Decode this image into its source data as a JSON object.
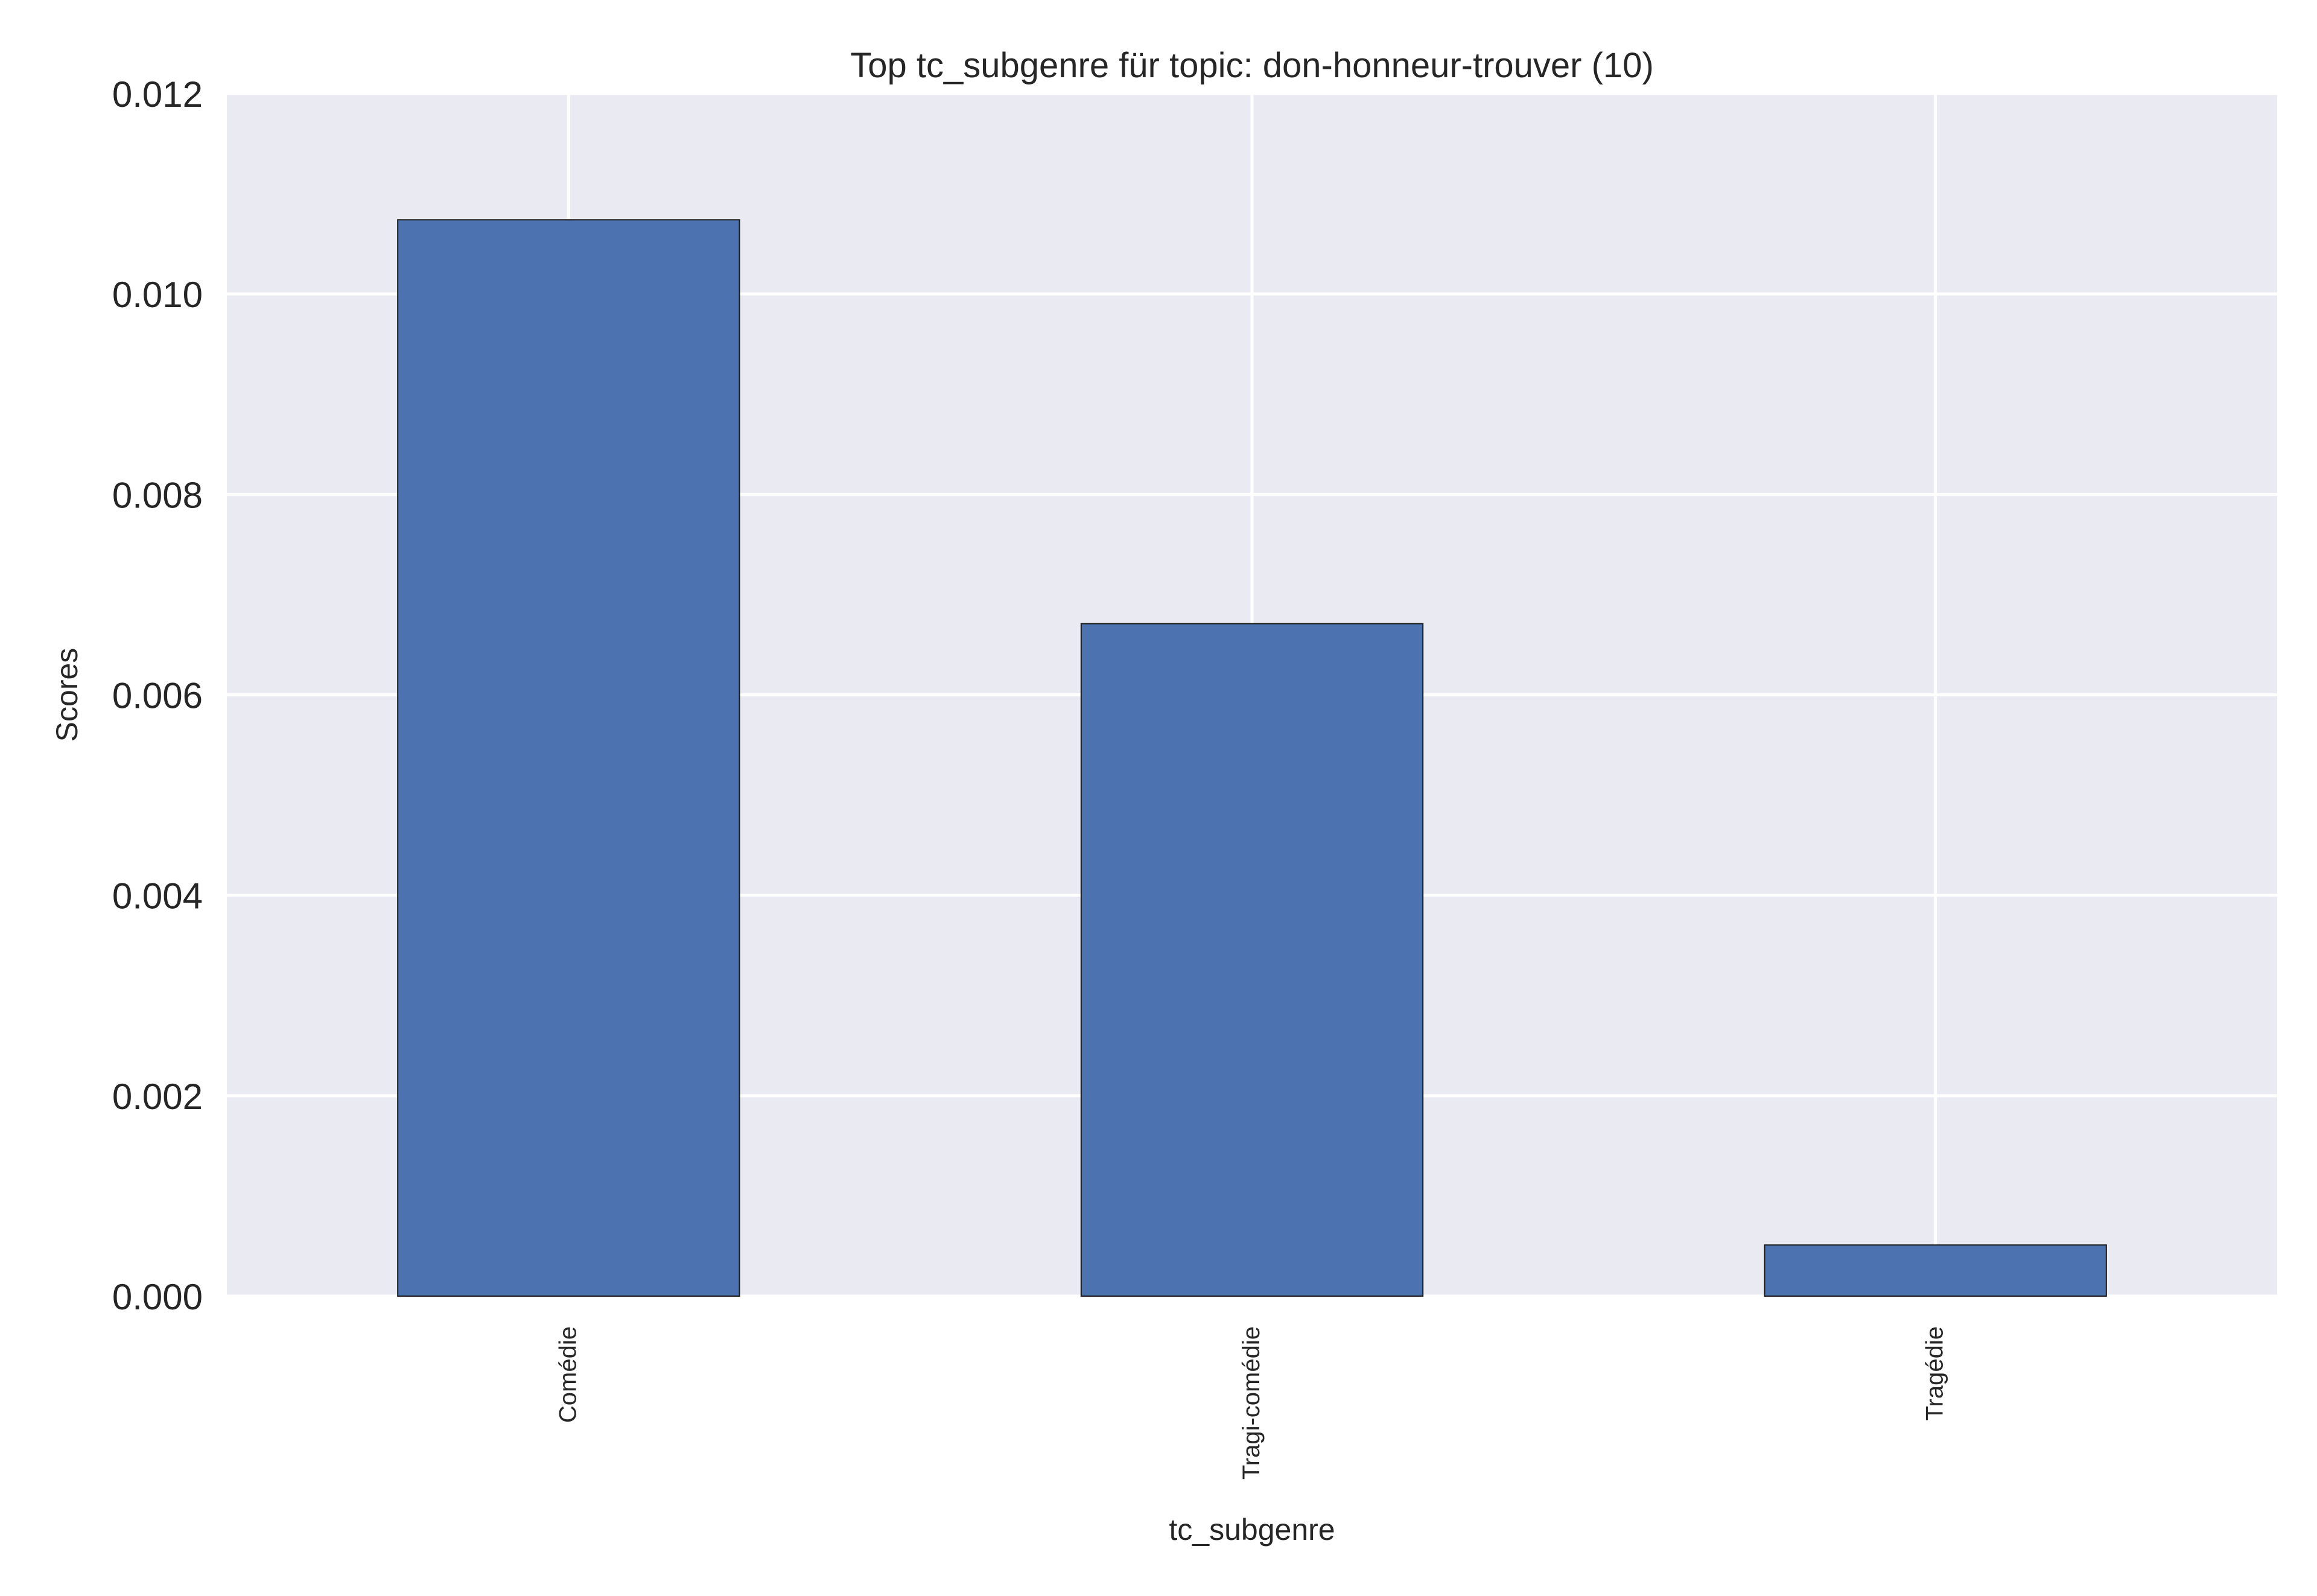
{
  "chart_data": {
    "type": "bar",
    "title": "Top tc_subgenre für topic: don-honneur-trouver (10)",
    "xlabel": "tc_subgenre",
    "ylabel": "Scores",
    "categories": [
      "Comédie",
      "Tragi-comédie",
      "Tragédie"
    ],
    "values": [
      0.01074,
      0.00671,
      0.00051
    ],
    "ylim": [
      0,
      0.012
    ],
    "yticks": [
      "0.000",
      "0.002",
      "0.004",
      "0.006",
      "0.008",
      "0.010",
      "0.012"
    ],
    "grid": true,
    "legend": "none",
    "colors": {
      "bar": "#4c72b0",
      "bar_edge": "#1a1a1a",
      "plot_background": "#eaeaf2",
      "grid": "#ffffff",
      "text": "#262626"
    }
  }
}
